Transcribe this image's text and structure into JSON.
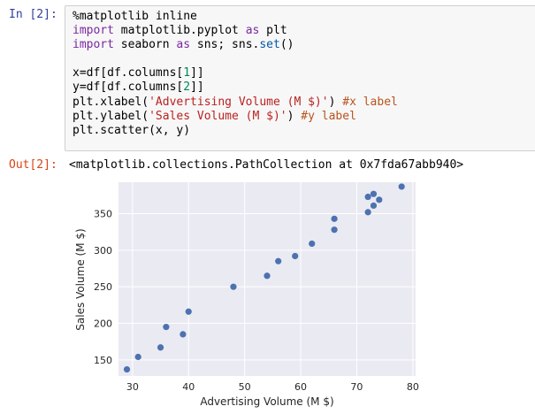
{
  "input_prompt": "In [2]:",
  "output_prompt": "Out[2]:",
  "code_lines": [
    [
      {
        "t": "%matplotlib inline",
        "c": ""
      }
    ],
    [
      {
        "t": "import",
        "c": "kw"
      },
      {
        "t": " matplotlib.pyplot ",
        "c": ""
      },
      {
        "t": "as",
        "c": "kw"
      },
      {
        "t": " plt",
        "c": ""
      }
    ],
    [
      {
        "t": "import",
        "c": "kw"
      },
      {
        "t": " seaborn ",
        "c": ""
      },
      {
        "t": "as",
        "c": "kw"
      },
      {
        "t": " sns; sns.",
        "c": ""
      },
      {
        "t": "set",
        "c": "bi"
      },
      {
        "t": "()",
        "c": ""
      }
    ],
    [
      {
        "t": "",
        "c": ""
      }
    ],
    [
      {
        "t": "x=df[df.columns[",
        "c": ""
      },
      {
        "t": "1",
        "c": "num"
      },
      {
        "t": "]]",
        "c": ""
      }
    ],
    [
      {
        "t": "y=df[df.columns[",
        "c": ""
      },
      {
        "t": "2",
        "c": "num"
      },
      {
        "t": "]]",
        "c": ""
      }
    ],
    [
      {
        "t": "plt.xlabel(",
        "c": ""
      },
      {
        "t": "'Advertising Volume (M $)'",
        "c": "str"
      },
      {
        "t": ") ",
        "c": ""
      },
      {
        "t": "#x label",
        "c": "cmt"
      }
    ],
    [
      {
        "t": "plt.ylabel(",
        "c": ""
      },
      {
        "t": "'Sales Volume (M $)'",
        "c": "str"
      },
      {
        "t": ") ",
        "c": ""
      },
      {
        "t": "#y label",
        "c": "cmt"
      }
    ],
    [
      {
        "t": "plt.scatter(x, y)",
        "c": ""
      }
    ]
  ],
  "output_text": "<matplotlib.collections.PathCollection at 0x7fda67abb940>",
  "colors": {
    "plot_bg": "#eaeaf2",
    "grid": "#ffffff",
    "point": "#4c72b0",
    "tick_text": "#262626"
  },
  "chart_data": {
    "type": "scatter",
    "title": "",
    "xlabel": "Advertising Volume (M $)",
    "ylabel": "Sales Volume (M $)",
    "xlim": [
      27.5,
      80.5
    ],
    "ylim": [
      128,
      393
    ],
    "xticks": [
      30,
      40,
      50,
      60,
      70,
      80
    ],
    "yticks": [
      150,
      200,
      250,
      300,
      350
    ],
    "grid": true,
    "points": [
      {
        "x": 29,
        "y": 137
      },
      {
        "x": 31,
        "y": 154
      },
      {
        "x": 35,
        "y": 167
      },
      {
        "x": 36,
        "y": 195
      },
      {
        "x": 39,
        "y": 185
      },
      {
        "x": 40,
        "y": 216
      },
      {
        "x": 48,
        "y": 250
      },
      {
        "x": 54,
        "y": 265
      },
      {
        "x": 56,
        "y": 285
      },
      {
        "x": 59,
        "y": 292
      },
      {
        "x": 62,
        "y": 309
      },
      {
        "x": 66,
        "y": 328
      },
      {
        "x": 66,
        "y": 343
      },
      {
        "x": 72,
        "y": 352
      },
      {
        "x": 72,
        "y": 373
      },
      {
        "x": 73,
        "y": 361
      },
      {
        "x": 73,
        "y": 377
      },
      {
        "x": 74,
        "y": 369
      },
      {
        "x": 78,
        "y": 387
      }
    ]
  }
}
